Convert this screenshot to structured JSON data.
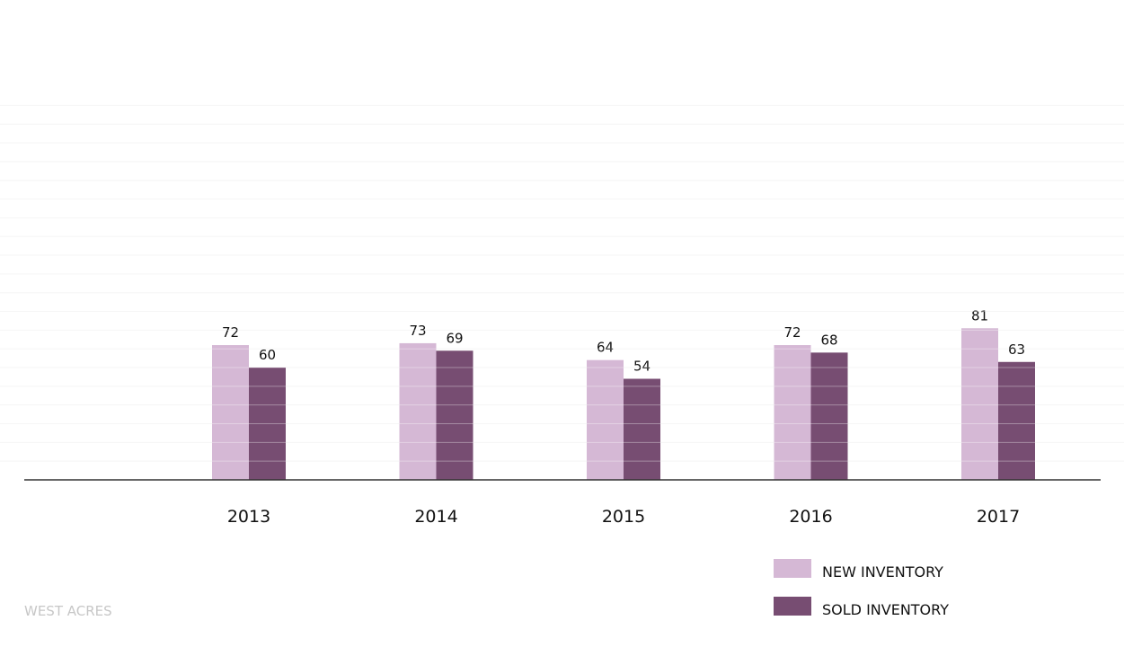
{
  "chart_data": {
    "type": "bar",
    "title": "",
    "xlabel": "",
    "ylabel": "",
    "categories": [
      "2013",
      "2014",
      "2015",
      "2016",
      "2017"
    ],
    "series": [
      {
        "name": "NEW INVENTORY",
        "color": "#d5b8d5",
        "values": [
          72,
          73,
          64,
          72,
          81
        ]
      },
      {
        "name": "SOLD INVENTORY",
        "color": "#774d72",
        "values": [
          60,
          69,
          54,
          68,
          63
        ]
      }
    ],
    "ylim": [
      0,
      200
    ],
    "grid": true,
    "y_tick_labels_shown": false,
    "data_labels": true,
    "legend_position": "bottom-right",
    "source_label": "WEST ACRES"
  }
}
